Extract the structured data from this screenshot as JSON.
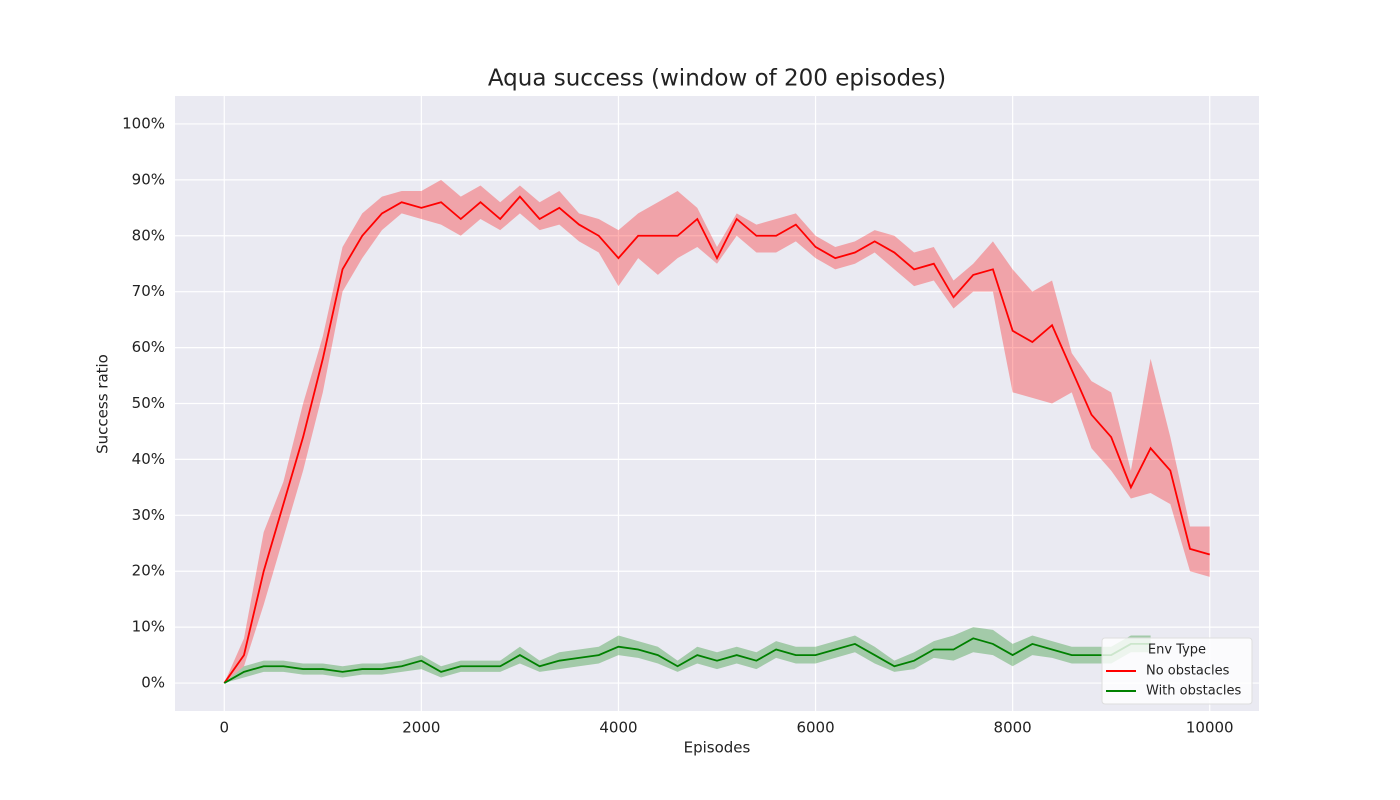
{
  "chart_data": {
    "type": "line",
    "title": "Aqua success (window of 200 episodes)",
    "x_label": "Episodes",
    "y_label": "Success ratio",
    "x": [
      0,
      200,
      400,
      600,
      800,
      1000,
      1200,
      1400,
      1600,
      1800,
      2000,
      2200,
      2400,
      2600,
      2800,
      3000,
      3200,
      3400,
      3600,
      3800,
      4000,
      4200,
      4400,
      4600,
      4800,
      5000,
      5200,
      5400,
      5600,
      5800,
      6000,
      6200,
      6400,
      6600,
      6800,
      7000,
      7200,
      7400,
      7600,
      7800,
      8000,
      8200,
      8400,
      8600,
      8800,
      9000,
      9200,
      9400,
      9600,
      9800,
      10000
    ],
    "series": [
      {
        "name": "No obstacles",
        "color": "#ff0000",
        "values": [
          0,
          5,
          20,
          32,
          44,
          58,
          74,
          80,
          84,
          86,
          85,
          86,
          83,
          86,
          83,
          87,
          83,
          85,
          82,
          80,
          76,
          80,
          80,
          80,
          83,
          76,
          83,
          80,
          80,
          82,
          78,
          76,
          77,
          79,
          77,
          74,
          75,
          69,
          73,
          74,
          63,
          61,
          64,
          56,
          48,
          44,
          35,
          42,
          38,
          24,
          23
        ],
        "lower": [
          0,
          3,
          14,
          26,
          38,
          52,
          70,
          76,
          81,
          84,
          83,
          82,
          80,
          83,
          81,
          84,
          81,
          82,
          79,
          77,
          71,
          76,
          73,
          76,
          78,
          75,
          80,
          77,
          77,
          79,
          76,
          74,
          75,
          77,
          74,
          71,
          72,
          67,
          70,
          70,
          52,
          51,
          50,
          52,
          42,
          38,
          33,
          34,
          32,
          20,
          19
        ],
        "upper": [
          0,
          8,
          27,
          36,
          50,
          62,
          78,
          84,
          87,
          88,
          88,
          90,
          87,
          89,
          86,
          89,
          86,
          88,
          84,
          83,
          81,
          84,
          86,
          88,
          85,
          78,
          84,
          82,
          83,
          84,
          80,
          78,
          79,
          81,
          80,
          77,
          78,
          72,
          75,
          79,
          74,
          70,
          72,
          59,
          54,
          52,
          38,
          58,
          44,
          28,
          28
        ]
      },
      {
        "name": "With obstacles",
        "color": "#008000",
        "values": [
          0,
          2,
          3,
          3,
          2.5,
          2.5,
          2,
          2.5,
          2.5,
          3,
          4,
          2,
          3,
          3,
          3,
          5,
          3,
          4,
          4.5,
          5,
          6.5,
          6,
          5,
          3,
          5,
          4,
          5,
          4,
          6,
          5,
          5,
          6,
          7,
          5,
          3,
          4,
          6,
          6,
          8,
          7,
          5,
          7,
          6,
          5,
          5,
          5,
          7,
          7,
          null,
          null,
          null
        ],
        "lower": [
          0,
          1,
          2,
          2,
          1.5,
          1.5,
          1,
          1.5,
          1.5,
          2,
          2.5,
          1,
          2,
          2,
          2,
          3.5,
          2,
          2.5,
          3,
          3.5,
          5,
          4.5,
          3.5,
          2,
          3.5,
          2.5,
          3.5,
          2.5,
          4.5,
          3.5,
          3.5,
          4.5,
          5.5,
          3.5,
          2,
          2.5,
          4.5,
          4,
          5.5,
          5,
          3,
          5,
          4.5,
          3.5,
          3.5,
          3.5,
          5.5,
          5.5,
          null,
          null,
          null
        ],
        "upper": [
          0,
          3,
          4,
          4,
          3.5,
          3.5,
          3,
          3.5,
          3.5,
          4,
          5,
          3,
          4,
          4,
          4,
          6.5,
          4,
          5.5,
          6,
          6.5,
          8.5,
          7.5,
          6.5,
          4,
          6.5,
          5.5,
          6.5,
          5.5,
          7.5,
          6.5,
          6.5,
          7.5,
          8.5,
          6.5,
          4,
          5.5,
          7.5,
          8.5,
          10,
          9.5,
          7,
          8.5,
          7.5,
          6.5,
          6.5,
          6.5,
          8.5,
          8.5,
          null,
          null,
          null
        ]
      }
    ],
    "xlim": [
      -500,
      10500
    ],
    "xticks": [
      0,
      2000,
      4000,
      6000,
      8000,
      10000
    ],
    "ylim": [
      -5,
      105
    ],
    "yticks": [
      {
        "value": 0,
        "label": "0%"
      },
      {
        "value": 10,
        "label": "10%"
      },
      {
        "value": 20,
        "label": "20%"
      },
      {
        "value": 30,
        "label": "30%"
      },
      {
        "value": 40,
        "label": "40%"
      },
      {
        "value": 50,
        "label": "50%"
      },
      {
        "value": 60,
        "label": "60%"
      },
      {
        "value": 70,
        "label": "70%"
      },
      {
        "value": 80,
        "label": "80%"
      },
      {
        "value": 90,
        "label": "90%"
      },
      {
        "value": 100,
        "label": "100%"
      }
    ],
    "grid": true,
    "legend_title": "Env Type",
    "legend_position": "lower right"
  }
}
